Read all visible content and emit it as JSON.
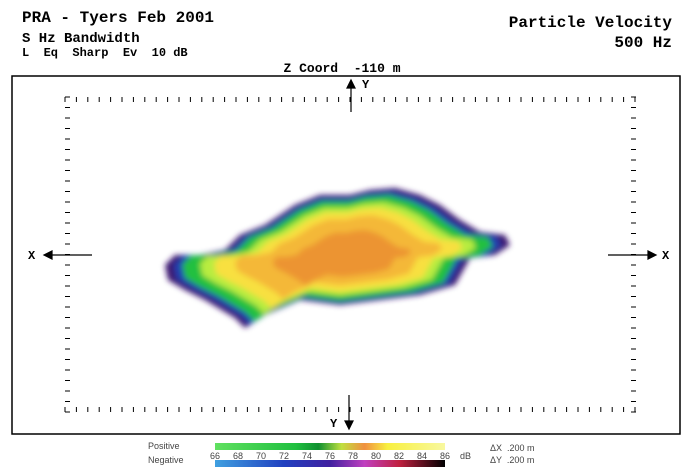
{
  "header": {
    "title": "PRA - Tyers Feb 2001",
    "bandwidth": "S Hz Bandwidth",
    "settings": "L  Eq  Sharp  Ev  10 dB",
    "quantity": "Particle Velocity",
    "frequency": "500 Hz"
  },
  "plot": {
    "z_coord": "Z Coord  -110 m",
    "top_axis": "Y",
    "bottom_axis": "Y",
    "left_axis": "X",
    "right_axis": "X"
  },
  "legend": {
    "positive": "Positive",
    "negative": "Negative",
    "ticks": [
      66,
      68,
      70,
      72,
      74,
      76,
      78,
      80,
      82,
      84,
      86
    ],
    "unit": "dB",
    "dx": "ΔX  .200 m",
    "dy": "ΔY  .200 m"
  }
}
